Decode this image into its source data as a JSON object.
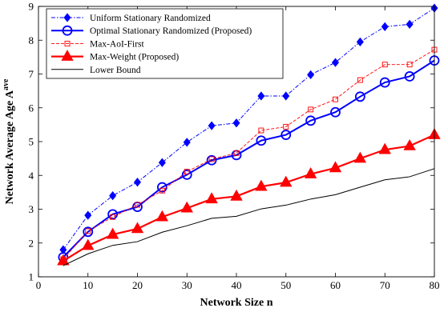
{
  "chart_data": {
    "type": "line",
    "xlabel": "Network Size n",
    "ylabel": "Network Average Age A",
    "ylabel_sup": "ave",
    "xlim": [
      0,
      80
    ],
    "ylim": [
      1,
      9
    ],
    "xticks": [
      0,
      10,
      20,
      30,
      40,
      50,
      60,
      70,
      80
    ],
    "yticks": [
      1,
      2,
      3,
      4,
      5,
      6,
      7,
      8,
      9
    ],
    "grid": false,
    "legend_position": "top-left",
    "x": [
      5,
      10,
      15,
      20,
      25,
      30,
      35,
      40,
      45,
      50,
      55,
      60,
      65,
      70,
      75,
      80
    ],
    "series": [
      {
        "name": "Uniform Stationary Randomized",
        "color": "#0000ff",
        "line_style": "dashdot",
        "marker": "filled-diamond",
        "values": [
          1.8,
          2.82,
          3.4,
          3.8,
          4.38,
          4.98,
          5.47,
          5.55,
          6.35,
          6.35,
          6.98,
          7.34,
          7.95,
          8.4,
          8.47,
          8.95
        ]
      },
      {
        "name": "Optimal Stationary Randomized (Proposed)",
        "color": "#0000ff",
        "line_style": "solid",
        "marker": "open-circle",
        "values": [
          1.58,
          2.33,
          2.85,
          3.07,
          3.65,
          4.02,
          4.45,
          4.6,
          5.03,
          5.2,
          5.62,
          5.87,
          6.33,
          6.75,
          6.93,
          7.4
        ]
      },
      {
        "name": "Max-AoI-First",
        "color": "#ff0000",
        "line_style": "dashed",
        "marker": "open-square",
        "values": [
          1.52,
          2.35,
          2.77,
          3.13,
          3.55,
          4.11,
          4.48,
          4.66,
          5.33,
          5.44,
          5.95,
          6.25,
          6.82,
          7.28,
          7.28,
          7.72
        ]
      },
      {
        "name": "Max-Weight (Proposed)",
        "color": "#ff0000",
        "line_style": "solid",
        "marker": "filled-triangle",
        "values": [
          1.47,
          1.92,
          2.25,
          2.42,
          2.77,
          3.03,
          3.3,
          3.38,
          3.67,
          3.79,
          4.04,
          4.22,
          4.5,
          4.76,
          4.87,
          5.2
        ]
      },
      {
        "name": "Lower Bound",
        "color": "#000000",
        "line_style": "solid",
        "marker": "none",
        "values": [
          1.33,
          1.68,
          1.93,
          2.04,
          2.32,
          2.51,
          2.73,
          2.79,
          3.01,
          3.12,
          3.3,
          3.43,
          3.65,
          3.87,
          3.96,
          4.2
        ]
      }
    ]
  }
}
